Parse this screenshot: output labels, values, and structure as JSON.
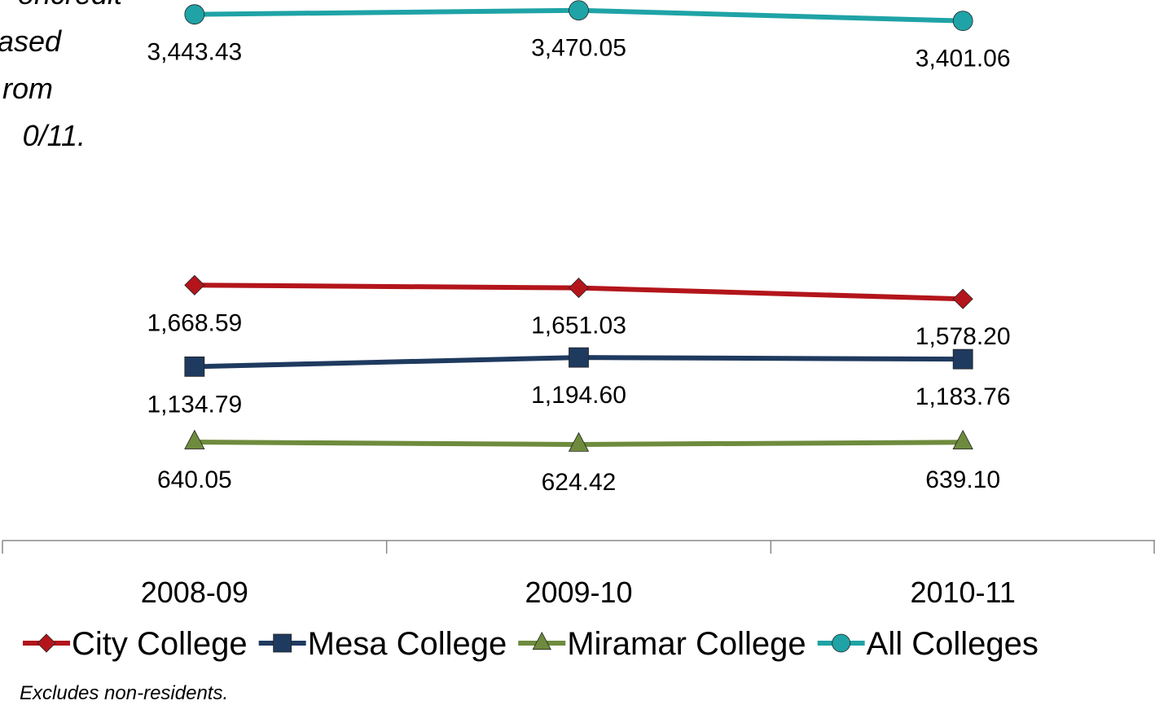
{
  "chart_data": {
    "type": "line",
    "annotation_lines": [
      "oncredit",
      "ased",
      "rom",
      "0/11."
    ],
    "categories": [
      "2008-09",
      "2009-10",
      "2010-11"
    ],
    "series": [
      {
        "name": "City College",
        "color": "#b3151b",
        "marker": "diamond",
        "values": [
          1668.59,
          1651.03,
          1578.2
        ],
        "value_labels": [
          "1,668.59",
          "1,651.03",
          "1,578.20"
        ]
      },
      {
        "name": "Mesa College",
        "color": "#1f3a5f",
        "marker": "square",
        "values": [
          1134.79,
          1194.6,
          1183.76
        ],
        "value_labels": [
          "1,134.79",
          "1,194.60",
          "1,183.76"
        ]
      },
      {
        "name": "Miramar College",
        "color": "#6e8b3d",
        "marker": "triangle",
        "values": [
          640.05,
          624.42,
          639.1
        ],
        "value_labels": [
          "640.05",
          "624.42",
          "639.10"
        ]
      },
      {
        "name": "All Colleges",
        "color": "#1fa3a6",
        "marker": "circle",
        "values": [
          3443.43,
          3470.05,
          3401.06
        ],
        "value_labels": [
          "3,443.43",
          "3,470.05",
          "3,401.06"
        ]
      }
    ],
    "legend": "bottom",
    "footnote": "Excludes non-residents."
  }
}
